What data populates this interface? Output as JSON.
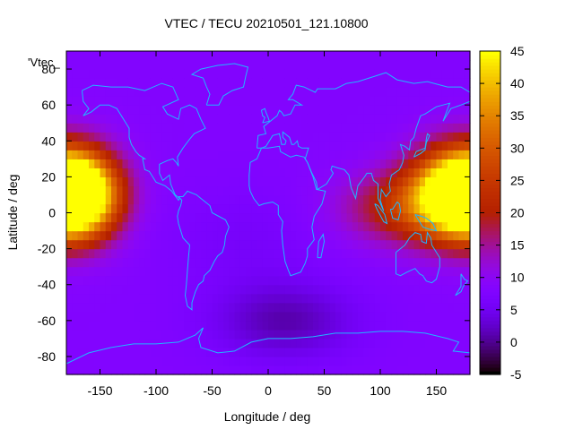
{
  "chart_data": {
    "type": "heatmap",
    "title": "VTEC / TECU 20210501_121.10800",
    "xlabel": "Longitude / deg",
    "ylabel": "Latitude / deg",
    "key_label": "'Vtec_",
    "xlim": [
      -180,
      180
    ],
    "ylim": [
      -90,
      90
    ],
    "xticks": [
      -150,
      -100,
      -50,
      0,
      50,
      100,
      150
    ],
    "yticks": [
      -80,
      -60,
      -40,
      -20,
      0,
      20,
      40,
      60,
      80
    ],
    "colorbar": {
      "min": -5,
      "max": 45,
      "ticks": [
        -5,
        0,
        5,
        10,
        15,
        20,
        25,
        30,
        35,
        40,
        45
      ]
    },
    "field": {
      "background": 8,
      "regions": [
        {
          "name": "pacific-crest",
          "lon": -170,
          "lat": 10,
          "peak": 38,
          "sigma_lon": 25,
          "sigma_lat": 16
        },
        {
          "name": "asia-crest",
          "lon": 170,
          "lat": 12,
          "peak": 38,
          "sigma_lon": 30,
          "sigma_lat": 17
        },
        {
          "name": "indonesia-band",
          "lon": 125,
          "lat": 3,
          "peak": 14,
          "sigma_lon": 40,
          "sigma_lat": 14
        },
        {
          "name": "south-atlantic-low",
          "lon": 15,
          "lat": -60,
          "peak": -7,
          "sigma_lon": 45,
          "sigma_lat": 15
        },
        {
          "name": "south-america-low",
          "lon": -20,
          "lat": -15,
          "peak": -2,
          "sigma_lon": 45,
          "sigma_lat": 20
        }
      ]
    }
  }
}
